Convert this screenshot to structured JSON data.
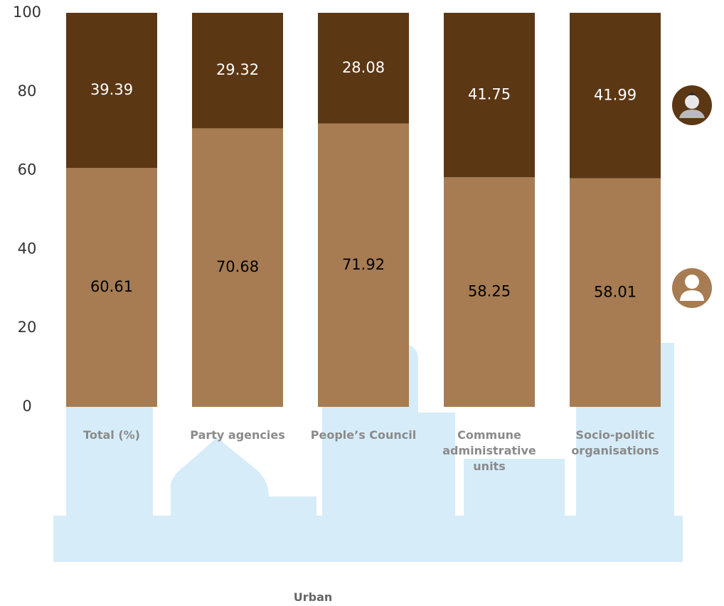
{
  "chart_data": {
    "type": "stacked-bar",
    "categories": [
      "Total (%)",
      "Party agencies",
      "People’s Council",
      "Commune administrative units",
      "Socio-politic organisations"
    ],
    "series": [
      {
        "color": "#a77c52",
        "label_color": "#000000",
        "values": [
          60.61,
          70.68,
          71.92,
          58.25,
          58.01
        ]
      },
      {
        "color": "#5c3714",
        "label_color": "#ffffff",
        "values": [
          39.39,
          29.32,
          28.08,
          41.75,
          41.99
        ]
      }
    ],
    "xlabel": "Urban",
    "ylim": [
      0,
      100
    ],
    "yticks": [
      0,
      20,
      40,
      60,
      80,
      100
    ]
  }
}
